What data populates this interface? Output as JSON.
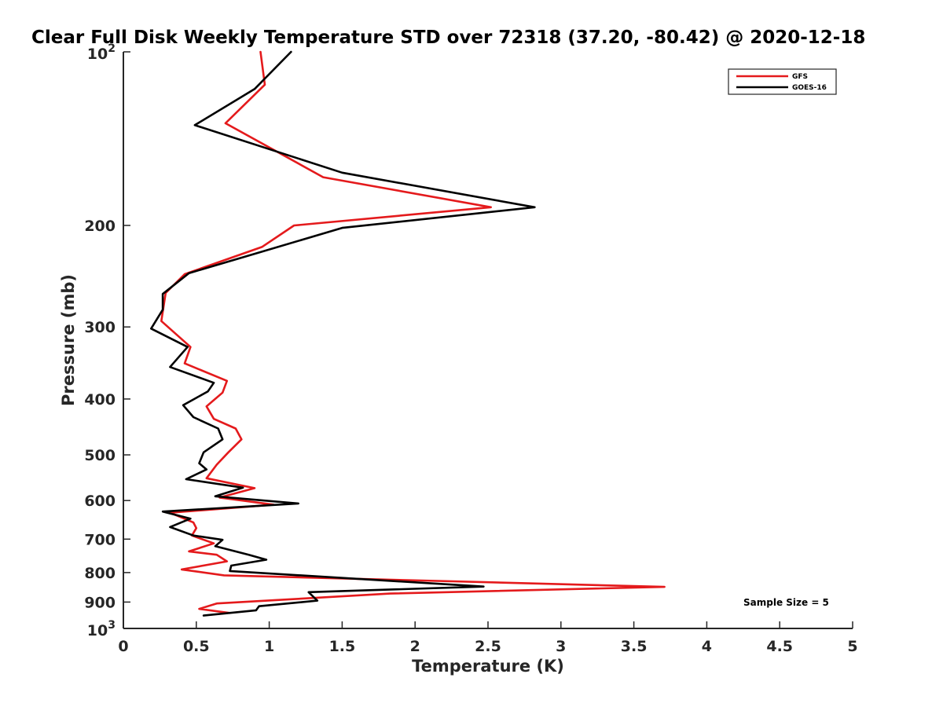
{
  "chart_data": {
    "type": "line",
    "title": "Clear Full Disk Weekly Temperature STD over 72318 (37.20, -80.42) @ 2020-12-18",
    "xlabel": "Temperature (K)",
    "ylabel": "Pressure (mb)",
    "xlim": [
      0,
      5
    ],
    "ylim": [
      100,
      1000
    ],
    "y_scale": "log",
    "y_reversed": true,
    "grid": false,
    "legend_position": "top-right",
    "x_ticks": [
      0,
      0.5,
      1,
      1.5,
      2,
      2.5,
      3,
      3.5,
      4,
      4.5,
      5
    ],
    "x_tick_labels": [
      "0",
      "0.5",
      "1",
      "1.5",
      "2",
      "2.5",
      "3",
      "3.5",
      "4",
      "4.5",
      "5"
    ],
    "y_ticks": [
      {
        "value": 100,
        "base": "10",
        "exp": "2"
      },
      {
        "value": 200,
        "label": "200"
      },
      {
        "value": 300,
        "label": "300"
      },
      {
        "value": 400,
        "label": "400"
      },
      {
        "value": 500,
        "label": "500"
      },
      {
        "value": 600,
        "label": "600"
      },
      {
        "value": 700,
        "label": "700"
      },
      {
        "value": 800,
        "label": "800"
      },
      {
        "value": 900,
        "label": "900"
      },
      {
        "value": 1000,
        "base": "10",
        "exp": "3"
      }
    ],
    "series": [
      {
        "name": "GFS",
        "color": "#e41a1c",
        "points": [
          [
            0.94,
            100
          ],
          [
            0.97,
            114
          ],
          [
            0.7,
            133
          ],
          [
            1.37,
            165
          ],
          [
            2.52,
            186
          ],
          [
            1.17,
            200
          ],
          [
            0.95,
            218
          ],
          [
            0.42,
            243
          ],
          [
            0.29,
            262
          ],
          [
            0.26,
            293
          ],
          [
            0.46,
            325
          ],
          [
            0.42,
            347
          ],
          [
            0.71,
            372
          ],
          [
            0.68,
            390
          ],
          [
            0.57,
            412
          ],
          [
            0.62,
            433
          ],
          [
            0.77,
            450
          ],
          [
            0.81,
            470
          ],
          [
            0.72,
            495
          ],
          [
            0.64,
            520
          ],
          [
            0.57,
            549
          ],
          [
            0.9,
            571
          ],
          [
            0.66,
            593
          ],
          [
            1.03,
            610
          ],
          [
            0.32,
            630
          ],
          [
            0.48,
            655
          ],
          [
            0.5,
            670
          ],
          [
            0.47,
            690
          ],
          [
            0.62,
            712
          ],
          [
            0.45,
            735
          ],
          [
            0.64,
            745
          ],
          [
            0.71,
            765
          ],
          [
            0.4,
            790
          ],
          [
            0.69,
            809
          ],
          [
            3.71,
            847
          ],
          [
            1.83,
            870
          ],
          [
            0.64,
            905
          ],
          [
            0.52,
            925
          ],
          [
            0.73,
            940
          ]
        ]
      },
      {
        "name": "GOES-16",
        "color": "#000000",
        "points": [
          [
            1.15,
            100
          ],
          [
            0.9,
            116
          ],
          [
            0.49,
            134
          ],
          [
            1.5,
            162
          ],
          [
            2.82,
            186
          ],
          [
            1.5,
            202
          ],
          [
            0.9,
            224
          ],
          [
            0.45,
            242
          ],
          [
            0.27,
            263
          ],
          [
            0.27,
            280
          ],
          [
            0.19,
            302
          ],
          [
            0.44,
            325
          ],
          [
            0.32,
            352
          ],
          [
            0.62,
            375
          ],
          [
            0.58,
            388
          ],
          [
            0.41,
            410
          ],
          [
            0.48,
            430
          ],
          [
            0.65,
            450
          ],
          [
            0.68,
            470
          ],
          [
            0.55,
            495
          ],
          [
            0.52,
            517
          ],
          [
            0.57,
            530
          ],
          [
            0.43,
            551
          ],
          [
            0.82,
            570
          ],
          [
            0.63,
            590
          ],
          [
            1.2,
            607
          ],
          [
            0.27,
            627
          ],
          [
            0.46,
            645
          ],
          [
            0.32,
            667
          ],
          [
            0.48,
            690
          ],
          [
            0.68,
            702
          ],
          [
            0.63,
            720
          ],
          [
            0.86,
            745
          ],
          [
            0.98,
            760
          ],
          [
            0.74,
            778
          ],
          [
            0.73,
            795
          ],
          [
            2.47,
            846
          ],
          [
            1.27,
            865
          ],
          [
            1.33,
            895
          ],
          [
            0.93,
            915
          ],
          [
            0.91,
            930
          ],
          [
            0.55,
            950
          ]
        ]
      }
    ],
    "annotations": [
      "Sample Size = 5"
    ]
  }
}
